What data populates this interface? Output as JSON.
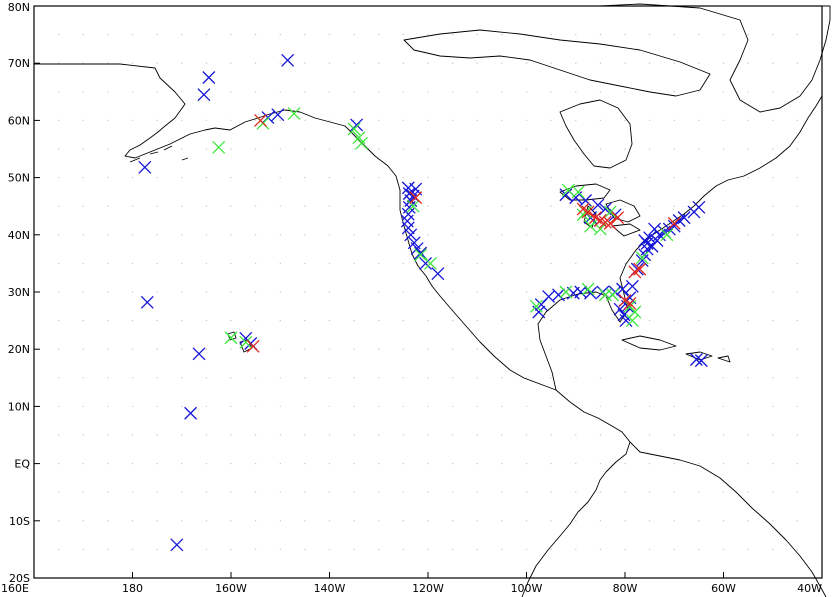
{
  "map": {
    "projection": "equirectangular",
    "lon_range": [
      160,
      320
    ],
    "lat_range": [
      -20,
      80
    ],
    "x_ticks": [
      {
        "lon": 160,
        "label": "160E"
      },
      {
        "lon": 180,
        "label": "180"
      },
      {
        "lon": 200,
        "label": "160W"
      },
      {
        "lon": 220,
        "label": "140W"
      },
      {
        "lon": 240,
        "label": "120W"
      },
      {
        "lon": 260,
        "label": "100W"
      },
      {
        "lon": 280,
        "label": "80W"
      },
      {
        "lon": 300,
        "label": "60W"
      },
      {
        "lon": 320,
        "label": "40W"
      }
    ],
    "y_ticks": [
      {
        "lat": 80,
        "label": "80N"
      },
      {
        "lat": 70,
        "label": "70N"
      },
      {
        "lat": 60,
        "label": "60N"
      },
      {
        "lat": 50,
        "label": "50N"
      },
      {
        "lat": 40,
        "label": "40N"
      },
      {
        "lat": 30,
        "label": "30N"
      },
      {
        "lat": 20,
        "label": "20N"
      },
      {
        "lat": 10,
        "label": "10N"
      },
      {
        "lat": 0,
        "label": "EQ"
      },
      {
        "lat": -10,
        "label": "10S"
      },
      {
        "lat": -20,
        "label": "20S"
      }
    ],
    "marker_colors": {
      "blue": "#1515d8",
      "green": "#3ce83c",
      "red": "#e0281e"
    }
  },
  "chart_data": {
    "type": "scatter",
    "marker": "x",
    "series": [
      {
        "color": "blue",
        "points": [
          [
            193.5,
            19.2
          ],
          [
            191.8,
            8.8
          ],
          [
            183.0,
            28.2
          ],
          [
            182.5,
            51.8
          ],
          [
            189.0,
            -14.2
          ],
          [
            211.5,
            70.5
          ],
          [
            195.5,
            67.5
          ],
          [
            194.5,
            64.5
          ],
          [
            209.5,
            61.0
          ],
          [
            207.5,
            60.5
          ],
          [
            225.5,
            59.2
          ],
          [
            204.0,
            21.0
          ],
          [
            203.0,
            21.9
          ],
          [
            236.0,
            48.2
          ],
          [
            236.2,
            47.2
          ],
          [
            236.5,
            46.0
          ],
          [
            236.2,
            44.8
          ],
          [
            236.0,
            43.6
          ],
          [
            235.8,
            42.4
          ],
          [
            236.0,
            41.2
          ],
          [
            236.5,
            40.0
          ],
          [
            237.2,
            38.6
          ],
          [
            237.8,
            37.6
          ],
          [
            238.5,
            36.8
          ],
          [
            239.5,
            35.0
          ],
          [
            242.0,
            33.2
          ],
          [
            237.5,
            48.0
          ],
          [
            237.0,
            46.8
          ],
          [
            262.5,
            26.5
          ],
          [
            263.0,
            27.8
          ],
          [
            264.5,
            29.2
          ],
          [
            266.5,
            29.5
          ],
          [
            269.5,
            29.8
          ],
          [
            271.0,
            30.0
          ],
          [
            273.0,
            29.8
          ],
          [
            275.5,
            30.0
          ],
          [
            278.0,
            30.0
          ],
          [
            279.5,
            30.5
          ],
          [
            280.0,
            28.5
          ],
          [
            280.5,
            27.5
          ],
          [
            279.8,
            26.0
          ],
          [
            280.2,
            25.0
          ],
          [
            279.0,
            27.0
          ],
          [
            281.0,
            29.0
          ],
          [
            281.5,
            31.0
          ],
          [
            268.0,
            47.0
          ],
          [
            270.0,
            46.5
          ],
          [
            272.0,
            46.0
          ],
          [
            274.5,
            45.2
          ],
          [
            276.0,
            44.5
          ],
          [
            273.0,
            43.0
          ],
          [
            275.0,
            42.5
          ],
          [
            278.0,
            43.5
          ],
          [
            282.5,
            34.0
          ],
          [
            283.5,
            35.5
          ],
          [
            284.0,
            36.5
          ],
          [
            284.5,
            37.5
          ],
          [
            284.5,
            38.5
          ],
          [
            285.0,
            39.5
          ],
          [
            285.5,
            38.0
          ],
          [
            286.5,
            39.0
          ],
          [
            287.0,
            40.0
          ],
          [
            288.0,
            40.5
          ],
          [
            289.0,
            41.0
          ],
          [
            290.0,
            41.5
          ],
          [
            291.0,
            42.5
          ],
          [
            292.0,
            43.0
          ],
          [
            284.0,
            39.0
          ],
          [
            286.0,
            41.0
          ],
          [
            294.0,
            44.0
          ],
          [
            295.0,
            44.8
          ],
          [
            294.5,
            18.2
          ],
          [
            295.5,
            18.0
          ]
        ]
      },
      {
        "color": "green",
        "points": [
          [
            197.5,
            55.3
          ],
          [
            206.5,
            59.5
          ],
          [
            212.8,
            61.2
          ],
          [
            225.0,
            58.5
          ],
          [
            226.0,
            57.0
          ],
          [
            226.5,
            56.0
          ],
          [
            200.0,
            22.0
          ],
          [
            203.0,
            21.2
          ],
          [
            238.5,
            36.5
          ],
          [
            240.5,
            35.0
          ],
          [
            237.0,
            45.0
          ],
          [
            262.0,
            27.5
          ],
          [
            268.0,
            30.0
          ],
          [
            272.5,
            30.5
          ],
          [
            276.0,
            29.5
          ],
          [
            277.5,
            29.5
          ],
          [
            281.0,
            27.5
          ],
          [
            282.0,
            26.5
          ],
          [
            281.5,
            25.0
          ],
          [
            268.5,
            47.8
          ],
          [
            270.5,
            47.5
          ],
          [
            272.0,
            44.0
          ],
          [
            273.0,
            41.5
          ],
          [
            275.0,
            41.0
          ],
          [
            271.5,
            43.5
          ],
          [
            277.0,
            44.0
          ],
          [
            283.5,
            36.0
          ],
          [
            288.5,
            40.0
          ]
        ]
      },
      {
        "color": "red",
        "points": [
          [
            206.0,
            60.0
          ],
          [
            204.5,
            20.5
          ],
          [
            237.5,
            46.5
          ],
          [
            271.5,
            44.5
          ],
          [
            272.5,
            44.0
          ],
          [
            274.0,
            43.0
          ],
          [
            275.0,
            42.5
          ],
          [
            276.0,
            42.2
          ],
          [
            277.0,
            42.0
          ],
          [
            280.0,
            28.5
          ],
          [
            281.0,
            28.0
          ],
          [
            282.0,
            33.5
          ],
          [
            283.0,
            34.0
          ],
          [
            290.0,
            42.0
          ],
          [
            278.5,
            43.0
          ]
        ]
      }
    ]
  }
}
